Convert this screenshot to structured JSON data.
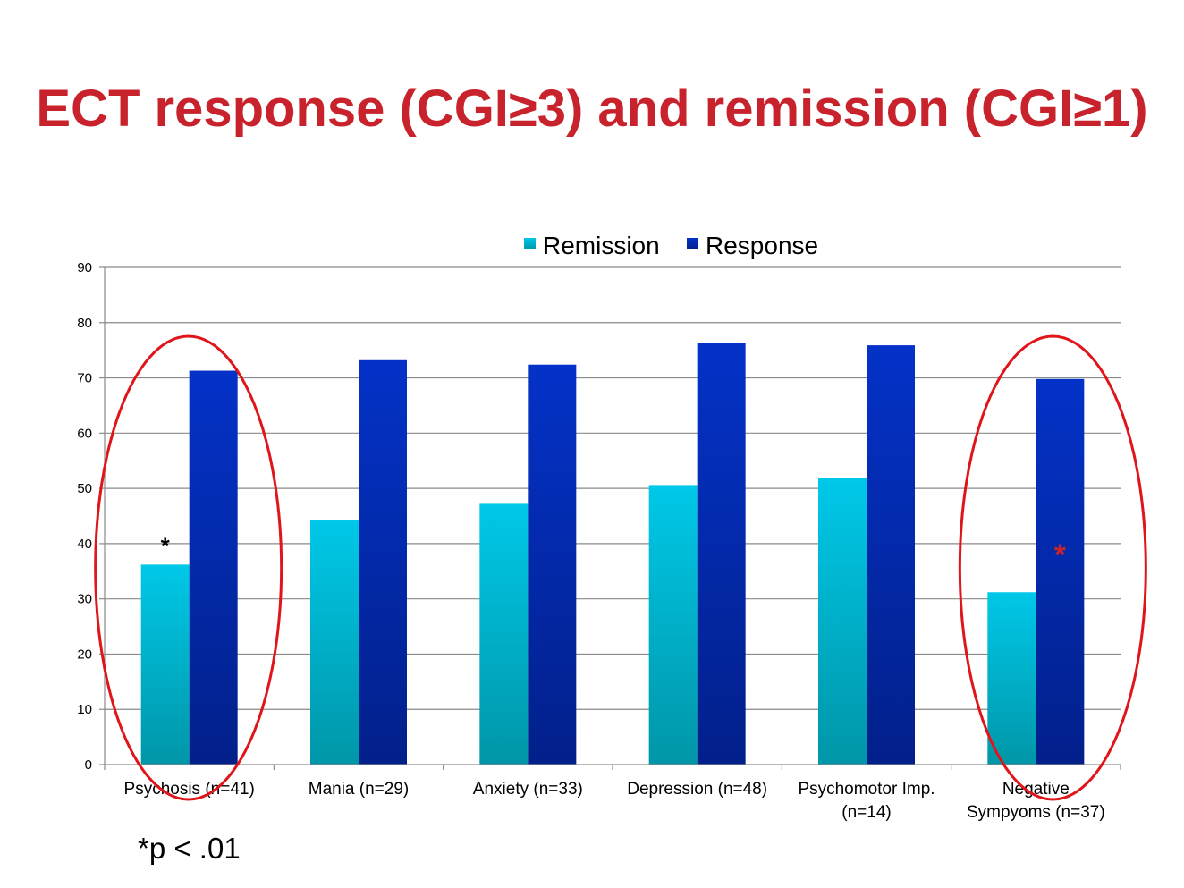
{
  "title": "ECT response (CGI≥3) and remission (CGI≥1)",
  "footnote": "*p < .01",
  "colors": {
    "title": "#c8232c",
    "remission_top": "#00c8e8",
    "remission_bottom": "#0096a8",
    "response_top": "#0432c8",
    "response_bottom": "#02208a",
    "highlight": "#e0151a",
    "asterisk_black": "#000000",
    "asterisk_red": "#c8232c"
  },
  "chart_data": {
    "type": "bar",
    "categories": [
      [
        "Psychosis (n=41)"
      ],
      [
        "Mania (n=29)"
      ],
      [
        "Anxiety (n=33)"
      ],
      [
        "Depression (n=48)"
      ],
      [
        "Psychomotor Imp.",
        "(n=14)"
      ],
      [
        "Negative",
        "Sympyoms (n=37)"
      ]
    ],
    "series": [
      {
        "name": "Remission",
        "values": [
          36.2,
          44.3,
          47.2,
          50.6,
          51.8,
          31.2
        ]
      },
      {
        "name": "Response",
        "values": [
          71.3,
          73.2,
          72.4,
          76.3,
          75.9,
          69.8
        ]
      }
    ],
    "ylim": [
      0,
      90
    ],
    "yticks": [
      0,
      10,
      20,
      30,
      40,
      50,
      60,
      70,
      80,
      90
    ],
    "grid": true,
    "legend": "top-center",
    "annotations": [
      {
        "text": "*",
        "category": 0,
        "series": 0,
        "y": 41,
        "color": "black"
      },
      {
        "text": "*",
        "category": 5,
        "series": 1,
        "y": 39,
        "color": "red"
      }
    ],
    "highlighted_categories": [
      0,
      5
    ]
  }
}
